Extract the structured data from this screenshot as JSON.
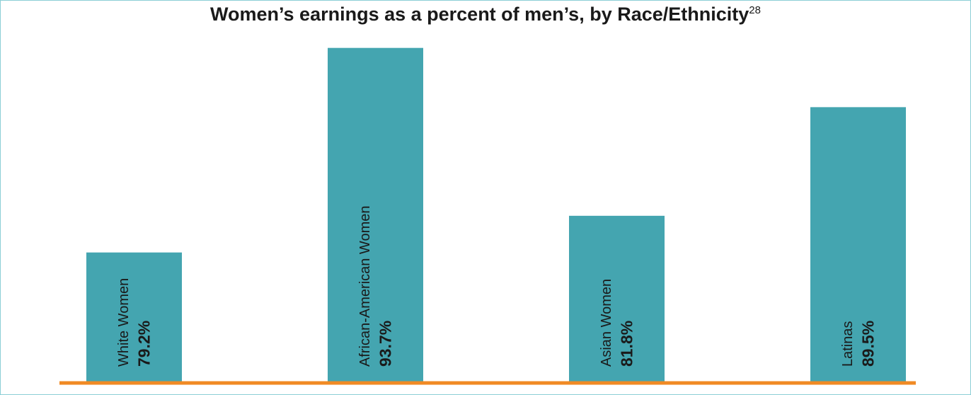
{
  "chart_data": {
    "type": "bar",
    "title": "Women’s earnings as a percent of men’s, by Race/Ethnicity",
    "title_superscript": "28",
    "categories": [
      "White Women",
      "African-American Women",
      "Asian Women",
      "Latinas"
    ],
    "values": [
      79.2,
      93.7,
      81.8,
      89.5
    ],
    "value_labels": [
      "79.2%",
      "93.7%",
      "81.8%",
      "89.5%"
    ],
    "color": "#44a5b0",
    "baseline_color": "#f08a24",
    "ylim": [
      70,
      94
    ]
  }
}
